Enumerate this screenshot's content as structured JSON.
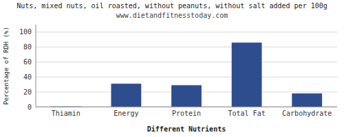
{
  "chart_data": {
    "type": "bar",
    "title": "Nuts, mixed nuts, oil roasted, without peanuts, without salt added per 100g",
    "subtitle": "www.dietandfitnesstoday.com",
    "categories": [
      "Thiamin",
      "Energy",
      "Protein",
      "Total Fat",
      "Carbohydrate"
    ],
    "values": [
      0.5,
      31,
      29,
      86,
      18
    ],
    "color": "#2e4d8f",
    "xlabel": "Different Nutrients",
    "ylabel": "Percentage of RDH (%)",
    "ylim": [
      0,
      110
    ],
    "yticks": [
      0,
      20,
      40,
      60,
      80,
      100
    ],
    "grid": true
  }
}
